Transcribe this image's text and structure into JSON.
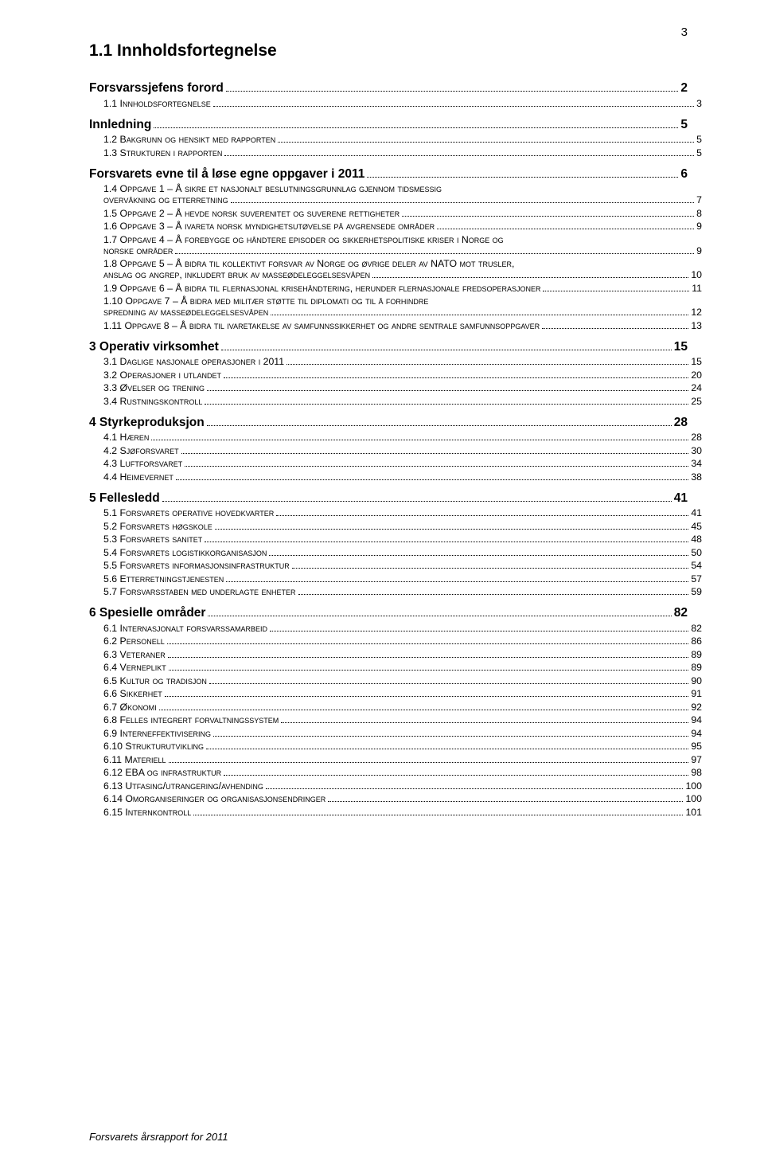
{
  "pageNumber": "3",
  "title": "1.1 Innholdsfortegnelse",
  "footer": "Forsvarets årsrapport for 2011",
  "toc": [
    {
      "level": "section",
      "label": "Forsvarssjefens forord",
      "page": "2"
    },
    {
      "level": "sub",
      "num": "1.1",
      "label": " Innholdsfortegnelse",
      "page": "3"
    },
    {
      "level": "section",
      "label": "Innledning",
      "page": "5"
    },
    {
      "level": "sub",
      "num": "1.2",
      "label": " Bakgrunn og hensikt med rapporten",
      "page": "5"
    },
    {
      "level": "sub",
      "num": "1.3",
      "label": " Strukturen i rapporten",
      "page": "5"
    },
    {
      "level": "section",
      "label": "Forsvarets evne til å løse egne oppgaver i 2011",
      "page": "6"
    },
    {
      "level": "sub",
      "num": "1.4",
      "label": " Oppgave 1 – Å sikre et nasjonalt beslutningsgrunnlag gjennom tidsmessig overvåkning og etterretning",
      "page": "7",
      "wrapAt": 79
    },
    {
      "level": "sub",
      "num": "1.5",
      "label": " Oppgave 2 – Å hevde norsk suverenitet og suverene rettigheter",
      "page": "8"
    },
    {
      "level": "sub",
      "num": "1.6",
      "label": " Oppgave 3 – Å ivareta norsk myndighetsutøvelse på avgrensede områder",
      "page": "9"
    },
    {
      "level": "sub",
      "num": "1.7",
      "label": " Oppgave 4 – Å forebygge og håndtere episoder og sikkerhetspolitiske kriser i Norge og norske områder",
      "page": "9",
      "wrapAt": 90
    },
    {
      "level": "sub",
      "num": "1.8",
      "label": " Oppgave 5 – Å bidra til kollektivt forsvar av Norge og øvrige deler av NATO mot trusler, anslag og angrep, inkludert bruk av masseødeleggelsesvåpen",
      "page": "10",
      "wrapAt": 94
    },
    {
      "level": "sub",
      "num": "1.9",
      "label": " Oppgave 6 – Å bidra til flernasjonal krisehåndtering, herunder flernasjonale fredsoperasjoner",
      "page": "11"
    },
    {
      "level": "sub",
      "num": "1.10",
      "label": " Oppgave 7 – Å bidra med militær støtte til diplomati og til å forhindre spredning av masseødeleggelsesvåpen",
      "page": "12",
      "wrapAt": 84
    },
    {
      "level": "sub",
      "num": "1.11",
      "label": " Oppgave 8 – Å bidra til ivaretakelse av samfunnssikkerhet og andre sentrale samfunnsoppgaver",
      "page": "13"
    },
    {
      "level": "section",
      "label": "3 Operativ virksomhet",
      "page": "15"
    },
    {
      "level": "sub",
      "num": "3.1",
      "label": " Daglige nasjonale operasjoner i 2011",
      "page": "15"
    },
    {
      "level": "sub",
      "num": "3.2",
      "label": " Operasjoner i utlandet",
      "page": "20"
    },
    {
      "level": "sub",
      "num": "3.3",
      "label": " Øvelser og trening",
      "page": "24"
    },
    {
      "level": "sub",
      "num": "3.4",
      "label": " Rustningskontroll",
      "page": "25"
    },
    {
      "level": "section",
      "label": "4 Styrkeproduksjon",
      "page": "28"
    },
    {
      "level": "sub",
      "num": "4.1",
      "label": " Hæren",
      "page": "28"
    },
    {
      "level": "sub",
      "num": "4.2",
      "label": " Sjøforsvaret",
      "page": "30"
    },
    {
      "level": "sub",
      "num": "4.3",
      "label": " Luftforsvaret",
      "page": "34"
    },
    {
      "level": "sub",
      "num": "4.4",
      "label": " Heimevernet",
      "page": "38"
    },
    {
      "level": "section",
      "label": "5 Fellesledd",
      "page": "41"
    },
    {
      "level": "sub",
      "num": "5.1",
      "label": " Forsvarets operative hovedkvarter",
      "page": "41"
    },
    {
      "level": "sub",
      "num": "5.2",
      "label": " Forsvarets høgskole",
      "page": "45"
    },
    {
      "level": "sub",
      "num": "5.3",
      "label": " Forsvarets sanitet",
      "page": "48"
    },
    {
      "level": "sub",
      "num": "5.4",
      "label": " Forsvarets logistikkorganisasjon",
      "page": "50"
    },
    {
      "level": "sub",
      "num": "5.5",
      "label": " Forsvarets informasjonsinfrastruktur",
      "page": "54"
    },
    {
      "level": "sub",
      "num": "5.6",
      "label": " Etterretningstjenesten",
      "page": "57"
    },
    {
      "level": "sub",
      "num": "5.7",
      "label": " Forsvarsstaben med underlagte enheter",
      "page": "59"
    },
    {
      "level": "section",
      "label": "6 Spesielle områder",
      "page": "82"
    },
    {
      "level": "sub",
      "num": "6.1",
      "label": " Internasjonalt forsvarssamarbeid",
      "page": "82"
    },
    {
      "level": "sub",
      "num": "6.2",
      "label": " Personell",
      "page": "86"
    },
    {
      "level": "sub",
      "num": "6.3",
      "label": " Veteraner",
      "page": "89"
    },
    {
      "level": "sub",
      "num": "6.4",
      "label": " Verneplikt",
      "page": "89"
    },
    {
      "level": "sub",
      "num": "6.5",
      "label": " Kultur og tradisjon",
      "page": "90"
    },
    {
      "level": "sub",
      "num": "6.6",
      "label": " Sikkerhet",
      "page": "91"
    },
    {
      "level": "sub",
      "num": "6.7",
      "label": " Økonomi",
      "page": "92"
    },
    {
      "level": "sub",
      "num": "6.8",
      "label": " Felles integrert forvaltningssystem",
      "page": "94"
    },
    {
      "level": "sub",
      "num": "6.9",
      "label": " Interneffektivisering",
      "page": "94"
    },
    {
      "level": "sub",
      "num": "6.10",
      "label": " Strukturutvikling",
      "page": "95"
    },
    {
      "level": "sub",
      "num": "6.11",
      "label": " Materiell",
      "page": "97"
    },
    {
      "level": "sub",
      "num": "6.12",
      "label": " EBA og infrastruktur",
      "page": "98"
    },
    {
      "level": "sub",
      "num": "6.13",
      "label": " Utfasing/utrangering/avhending",
      "page": "100"
    },
    {
      "level": "sub",
      "num": "6.14",
      "label": " Omorganiseringer og organisasjonsendringer",
      "page": "100"
    },
    {
      "level": "sub",
      "num": "6.15",
      "label": " Internkontroll",
      "page": "101"
    }
  ]
}
